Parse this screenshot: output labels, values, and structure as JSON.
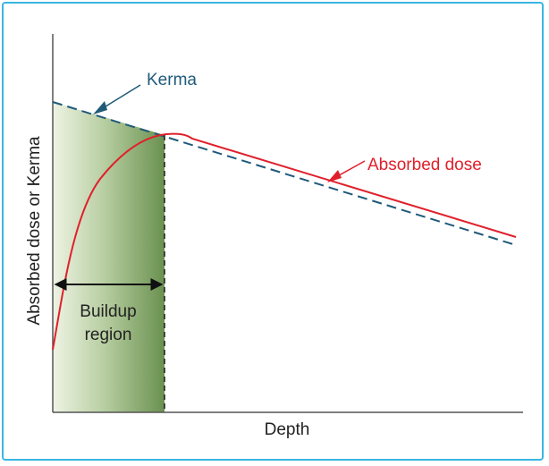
{
  "labels": {
    "kerma": "Kerma",
    "absorbed_dose": "Absorbed dose",
    "y_axis": "Absorbed dose or Kerma",
    "x_axis": "Depth",
    "buildup_line1": "Buildup",
    "buildup_line2": "region"
  },
  "colors": {
    "frame": "#39b6e3",
    "kerma": "#1f5a7a",
    "absorbed_dose": "#e0202b",
    "axis": "#555555",
    "text": "#222222",
    "region_light": "#e9efdc",
    "region_dark": "#6f9455"
  }
}
